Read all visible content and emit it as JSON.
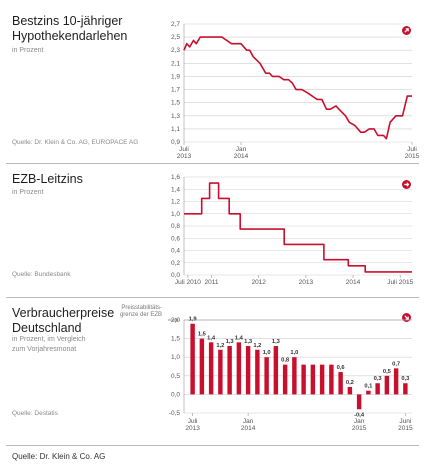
{
  "footer": "Quelle: Dr. Klein & Co. AG",
  "panels": [
    {
      "title": "Bestzins 10-jähriger\nHypothekendarlehen",
      "subtitle": "in Prozent",
      "source": "Quelle: Dr. Klein & Co. AG, EUROPACE AG",
      "trend_icon": "arrow-up-right-icon"
    },
    {
      "title": "EZB-Leitzins",
      "subtitle": "in Prozent",
      "source": "Quelle: Bundesbank",
      "trend_icon": "arrow-right-icon"
    },
    {
      "title": "Verbraucherpreise\nDeutschland",
      "subtitle": "in Prozent, im Vergleich\nzum Vorjahresmonat",
      "source": "Quelle: Destatis",
      "note": "Preisstabilitäts-\ngrenze der EZB",
      "trend_icon": "arrow-down-right-icon"
    }
  ],
  "colors": {
    "accent": "#c8102e",
    "grid": "#cfcfcf",
    "text": "#222222",
    "muted": "#8a8a8a"
  },
  "chart_data": [
    {
      "type": "line",
      "ylim": [
        0.9,
        2.7
      ],
      "yticks": [
        "0,9",
        "1,1",
        "1,3",
        "1,5",
        "1,7",
        "1,9",
        "2,1",
        "2,3",
        "2,5",
        "2,7"
      ],
      "xticks": [
        {
          "label": "Juli\n2013",
          "x": 0
        },
        {
          "label": "Jan\n2014",
          "x": 6
        },
        {
          "label": "Juli\n2015",
          "x": 24
        }
      ],
      "xlim": [
        0,
        24
      ],
      "x": [
        0,
        0.3,
        0.6,
        1.0,
        1.3,
        1.7,
        2.0,
        2.3,
        3.0,
        4.0,
        5.0,
        5.4,
        6.0,
        6.6,
        6.9,
        7.3,
        8.0,
        8.6,
        9.0,
        9.3,
        10.0,
        10.5,
        11.0,
        11.4,
        11.8,
        12.4,
        13.0,
        14.0,
        14.5,
        15.0,
        15.4,
        16.0,
        16.3,
        17.0,
        17.4,
        18.0,
        18.6,
        19.0,
        19.5,
        20.0,
        20.4,
        21.0,
        21.3,
        21.7,
        22.3,
        23.0,
        23.5,
        24.0
      ],
      "y": [
        2.3,
        2.4,
        2.35,
        2.45,
        2.4,
        2.5,
        2.5,
        2.5,
        2.5,
        2.5,
        2.4,
        2.4,
        2.4,
        2.3,
        2.3,
        2.2,
        2.1,
        1.95,
        1.95,
        1.9,
        1.9,
        1.85,
        1.85,
        1.8,
        1.7,
        1.7,
        1.65,
        1.55,
        1.55,
        1.4,
        1.4,
        1.45,
        1.4,
        1.3,
        1.2,
        1.15,
        1.05,
        1.05,
        1.1,
        1.1,
        1.0,
        1.0,
        0.95,
        1.2,
        1.3,
        1.3,
        1.6,
        1.6
      ]
    },
    {
      "type": "line",
      "ylim": [
        0.0,
        1.6
      ],
      "yticks": [
        "0,0",
        "0,2",
        "0,4",
        "0,6",
        "0,8",
        "1,0",
        "1,2",
        "1,4",
        "1,6"
      ],
      "xticks": [
        {
          "label": "Juli 2010",
          "x": 0
        },
        {
          "label": "2011",
          "x": 6
        },
        {
          "label": "2012",
          "x": 18
        },
        {
          "label": "2013",
          "x": 30
        },
        {
          "label": "2014",
          "x": 42
        },
        {
          "label": "Juli 2015",
          "x": 54
        }
      ],
      "xlim": [
        -1,
        57
      ],
      "x": [
        -1,
        3.5,
        3.5,
        5.5,
        5.5,
        7.8,
        7.8,
        10.5,
        10.5,
        13.3,
        13.3,
        24.5,
        24.5,
        34.6,
        34.6,
        40.8,
        40.8,
        45.1,
        45.1,
        57
      ],
      "y": [
        1.0,
        1.0,
        1.25,
        1.25,
        1.5,
        1.5,
        1.25,
        1.25,
        1.0,
        1.0,
        0.75,
        0.75,
        0.5,
        0.5,
        0.25,
        0.25,
        0.15,
        0.15,
        0.05,
        0.05
      ]
    },
    {
      "type": "bar",
      "ylim": [
        -0.5,
        2.0
      ],
      "yticks": [
        "-0,5",
        "0,0",
        "0,5",
        "1,0",
        "1,5",
        "2,0"
      ],
      "reference_line": 2.0,
      "xticks": [
        {
          "label": "Juli\n2013",
          "index": 0
        },
        {
          "label": "Jan\n2014",
          "index": 6
        },
        {
          "label": "Jan\n2015",
          "index": 18
        },
        {
          "label": "Juni\n2015",
          "index": 23
        }
      ],
      "values": [
        1.9,
        1.5,
        1.4,
        1.2,
        1.3,
        1.4,
        1.3,
        1.2,
        1.0,
        1.3,
        0.8,
        1.0,
        0.8,
        0.8,
        0.8,
        0.8,
        0.6,
        0.2,
        -0.4,
        0.1,
        0.3,
        0.5,
        0.7,
        0.3
      ],
      "labels": [
        "1,9",
        "1,5",
        "1,4",
        "1,2",
        "1,3",
        "1,4",
        "1,3",
        "1,2",
        "1,0",
        "1,3",
        "0,8",
        "1,0",
        "",
        "",
        "",
        "",
        "0,6",
        "0,2",
        "-0,4",
        "0,1",
        "0,3",
        "0,5",
        "0,7",
        "0,3"
      ]
    }
  ]
}
